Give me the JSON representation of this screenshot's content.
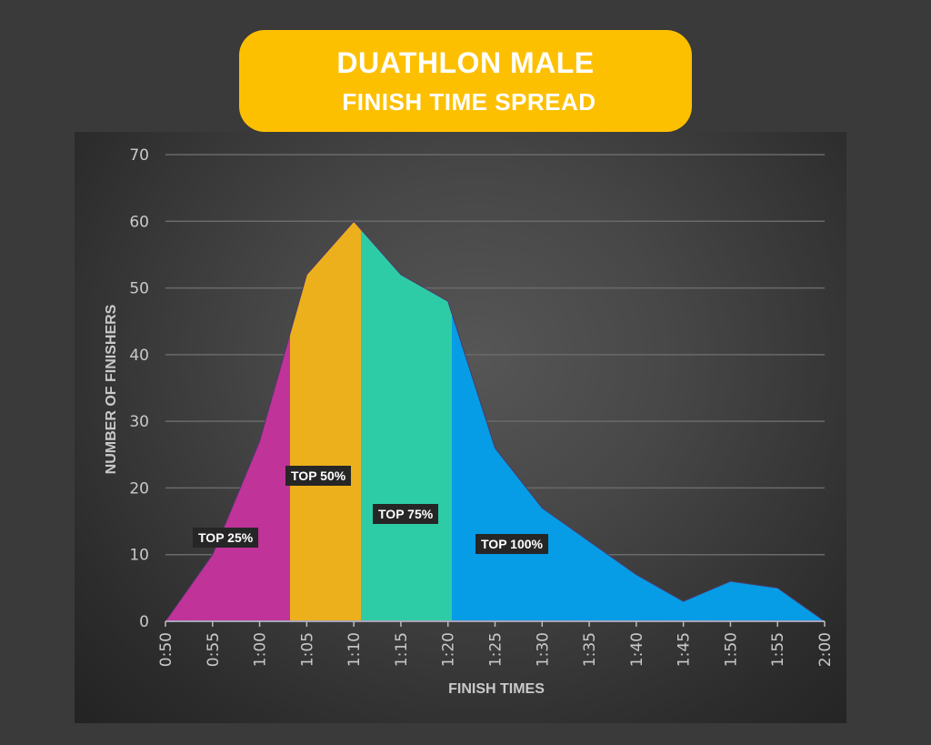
{
  "title": {
    "line1": "DUATHLON MALE",
    "line2": "FINISH TIME SPREAD",
    "background_color": "#fdc000"
  },
  "chart_data": {
    "type": "area",
    "title": "DUATHLON MALE FINISH TIME SPREAD",
    "xlabel": "FINISH TIMES",
    "ylabel": "NUMBER OF FINISHERS",
    "categories": [
      "0:50",
      "0:55",
      "1:00",
      "1:05",
      "1:10",
      "1:15",
      "1:20",
      "1:25",
      "1:30",
      "1:35",
      "1:40",
      "1:45",
      "1:50",
      "1:55",
      "2:00"
    ],
    "values": [
      0,
      10,
      27,
      52,
      60,
      52,
      48,
      26,
      17,
      12,
      7,
      3,
      6,
      5,
      0
    ],
    "ylim": [
      0,
      70
    ],
    "yticks": [
      0,
      10,
      20,
      30,
      40,
      50,
      60,
      70
    ],
    "grid": true,
    "legend": "none",
    "bands": [
      {
        "label": "TOP 25%",
        "color": "#c03399",
        "x_start": "0:50",
        "x_end": "~1:03"
      },
      {
        "label": "TOP 50%",
        "color": "#ecb01d",
        "x_start": "~1:03",
        "x_end": "~1:11"
      },
      {
        "label": "TOP 75%",
        "color": "#2ecca6",
        "x_start": "~1:11",
        "x_end": "~1:21"
      },
      {
        "label": "TOP 100%",
        "color": "#069ce6",
        "x_start": "~1:21",
        "x_end": "2:00"
      }
    ]
  }
}
